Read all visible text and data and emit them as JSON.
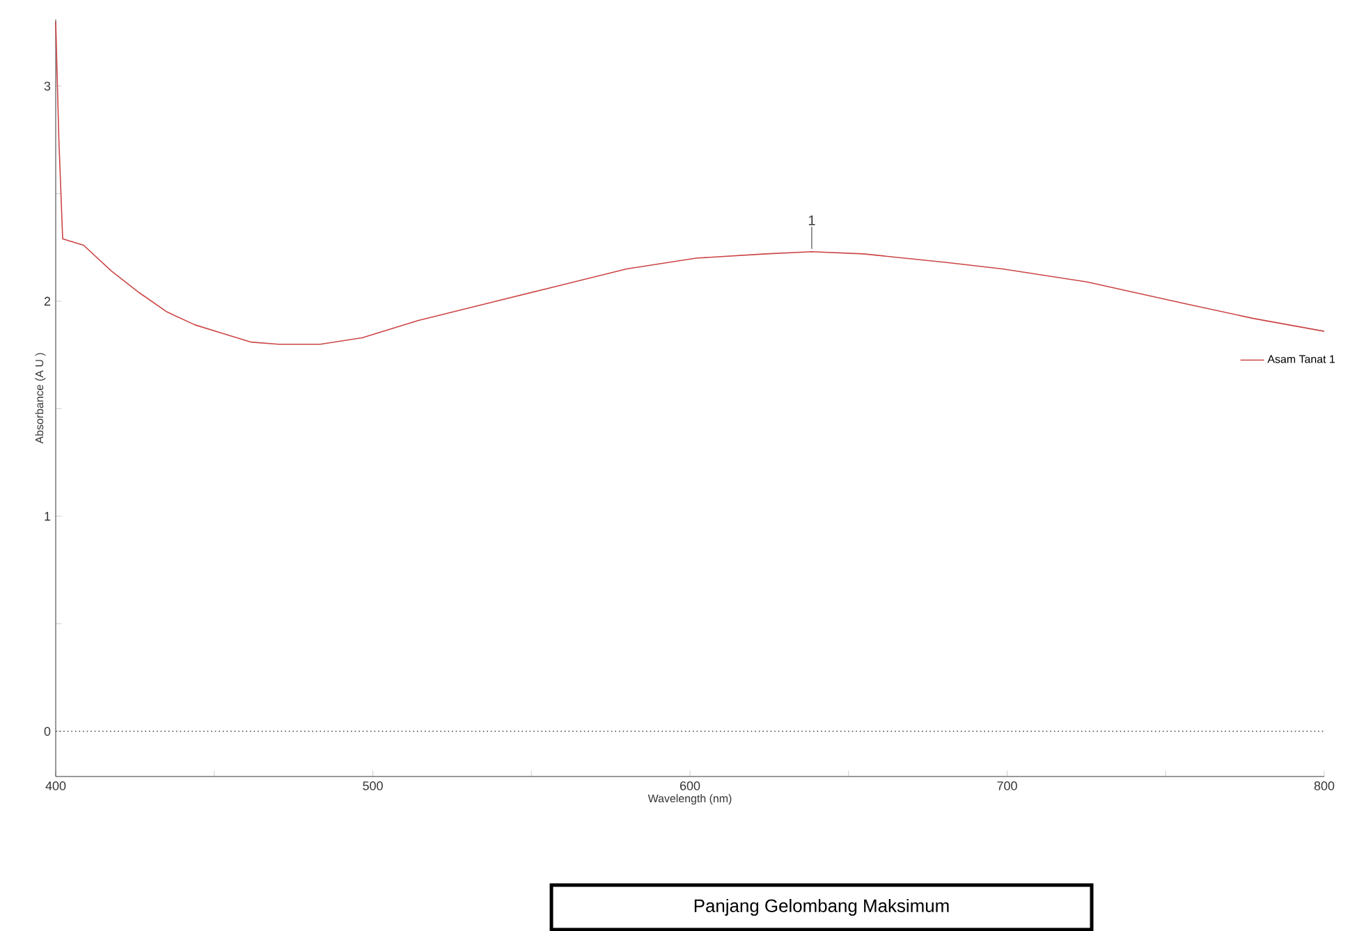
{
  "chart_data": {
    "type": "line",
    "xlabel": "Wavelength (nm)",
    "ylabel": "Absorbance (A U )",
    "x": [
      400,
      401,
      402.2,
      408.8,
      417.6,
      426.3,
      435.1,
      443.9,
      452.7,
      461.5,
      470.3,
      483.4,
      496.6,
      514.2,
      536.1,
      558.1,
      580,
      601.9,
      623.9,
      638.4,
      654.7,
      681,
      698.6,
      725,
      755.7,
      777.6,
      800
    ],
    "series": [
      {
        "name": "Asam Tanat 1",
        "color": "#cc4444",
        "values": [
          3.3,
          2.75,
          2.29,
          2.26,
          2.14,
          2.04,
          1.95,
          1.89,
          1.85,
          1.81,
          1.8,
          1.8,
          1.83,
          1.91,
          1.99,
          2.07,
          2.15,
          2.2,
          2.22,
          2.23,
          2.22,
          2.18,
          2.15,
          2.09,
          1.99,
          1.92,
          1.86
        ]
      }
    ],
    "xlim": [
      400,
      800
    ],
    "ylim": [
      -0.21,
      3.31
    ],
    "xticks": [
      400,
      {
        "value": 450,
        "label": null
      },
      500,
      {
        "value": 550,
        "label": null
      },
      600,
      {
        "value": 650,
        "label": null
      },
      700,
      {
        "value": 750,
        "label": null
      },
      800
    ],
    "yticks": [
      0,
      {
        "value": 0.5,
        "label": null
      },
      1,
      {
        "value": 1.5,
        "label": null
      },
      2,
      {
        "value": 2.5,
        "label": null
      },
      3
    ],
    "grid": false,
    "legend": "right",
    "line_style": "solid",
    "marker": "none",
    "ref_lines": [
      {
        "axis": "y",
        "value": 0,
        "line_style": "dotted",
        "color": "#444444"
      }
    ],
    "annotations": [
      {
        "text": "1",
        "x": 638.4,
        "y": 2.23
      },
      "Panjang Gelombang Maksimum"
    ]
  }
}
